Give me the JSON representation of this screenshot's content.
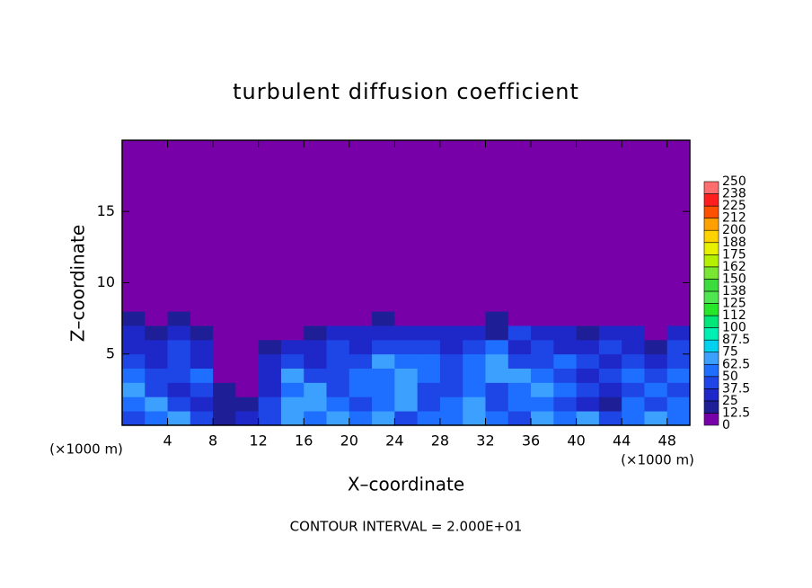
{
  "chart_data": {
    "type": "contour",
    "title": "turbulent diffusion coefficient",
    "xlabel": "X–coordinate",
    "ylabel": "Z–coordinate",
    "x_unit": "(×1000 m)",
    "y_unit": "(×1000 m)",
    "note": "CONTOUR INTERVAL = 2.000E+01",
    "xlim": [
      0,
      50
    ],
    "ylim": [
      0,
      20
    ],
    "xticks": [
      4,
      8,
      12,
      16,
      20,
      24,
      28,
      32,
      36,
      40,
      44,
      48
    ],
    "yticks": [
      5,
      10,
      15
    ],
    "x_edges": [
      0,
      2,
      4,
      6,
      8,
      10,
      12,
      14,
      16,
      18,
      20,
      22,
      24,
      26,
      28,
      30,
      32,
      34,
      36,
      38,
      40,
      42,
      44,
      46,
      48,
      50
    ],
    "z_edges": [
      0,
      1,
      2,
      3,
      4,
      5,
      6,
      7,
      8,
      20
    ],
    "values": [
      [
        37.5,
        50,
        62.5,
        37.5,
        12.5,
        25,
        37.5,
        62.5,
        50,
        62.5,
        50,
        62.5,
        37.5,
        50,
        50,
        62.5,
        50,
        37.5,
        62.5,
        50,
        62.5,
        37.5,
        50,
        62.5,
        50
      ],
      [
        50,
        62.5,
        37.5,
        25,
        12.5,
        12.5,
        37.5,
        62.5,
        62.5,
        50,
        37.5,
        50,
        62.5,
        37.5,
        50,
        62.5,
        37.5,
        50,
        50,
        37.5,
        25,
        12.5,
        50,
        37.5,
        50
      ],
      [
        62.5,
        37.5,
        25,
        37.5,
        12.5,
        0,
        25,
        50,
        62.5,
        37.5,
        50,
        50,
        62.5,
        37.5,
        37.5,
        50,
        37.5,
        50,
        62.5,
        50,
        37.5,
        25,
        37.5,
        50,
        37.5
      ],
      [
        50,
        37.5,
        37.5,
        50,
        0,
        0,
        25,
        62.5,
        37.5,
        37.5,
        50,
        50,
        62.5,
        50,
        37.5,
        50,
        62.5,
        62.5,
        50,
        37.5,
        25,
        37.5,
        50,
        37.5,
        50
      ],
      [
        37.5,
        25,
        37.5,
        25,
        0,
        0,
        25,
        37.5,
        25,
        37.5,
        37.5,
        62.5,
        50,
        50,
        37.5,
        50,
        62.5,
        37.5,
        37.5,
        50,
        37.5,
        25,
        37.5,
        25,
        37.5
      ],
      [
        25,
        25,
        37.5,
        25,
        0,
        0,
        12.5,
        25,
        25,
        37.5,
        25,
        37.5,
        37.5,
        37.5,
        25,
        37.5,
        50,
        25,
        37.5,
        25,
        25,
        37.5,
        25,
        12.5,
        37.5
      ],
      [
        25,
        12.5,
        25,
        12.5,
        0,
        0,
        0,
        0,
        12.5,
        25,
        25,
        25,
        25,
        25,
        25,
        25,
        12.5,
        37.5,
        25,
        25,
        12.5,
        25,
        25,
        0,
        25
      ],
      [
        12.5,
        0,
        12.5,
        0,
        0,
        0,
        0,
        0,
        0,
        0,
        0,
        12.5,
        0,
        0,
        0,
        0,
        12.5,
        0,
        0,
        0,
        0,
        0,
        0,
        0,
        0
      ],
      [
        0,
        0,
        0,
        0,
        0,
        0,
        0,
        0,
        0,
        0,
        0,
        0,
        0,
        0,
        0,
        0,
        0,
        0,
        0,
        0,
        0,
        0,
        0,
        0,
        0
      ]
    ],
    "colorbar_ticks": [
      0,
      12.5,
      25,
      37.5,
      50,
      62.5,
      75,
      87.5,
      100,
      {
        "value": 112.5,
        "label": "112"
      },
      125,
      {
        "value": 137.5,
        "label": "138"
      },
      150,
      {
        "value": 162.5,
        "label": "162"
      },
      175,
      {
        "value": 187.5,
        "label": "188"
      },
      200,
      {
        "value": 212.5,
        "label": "212"
      },
      225,
      {
        "value": 237.5,
        "label": "238"
      },
      250
    ],
    "colors": [
      "#7800a8",
      "#1e1e96",
      "#1e28c8",
      "#1e46e6",
      "#1e6eff",
      "#3ca0ff",
      "#00d2f0",
      "#00f0b4",
      "#00e678",
      "#28e628",
      "#50e650",
      "#3cdc3c",
      "#78e632",
      "#b4f000",
      "#e6f000",
      "#ffd200",
      "#ffa000",
      "#ff5000",
      "#ff1e1e",
      "#ff6e6e"
    ]
  }
}
